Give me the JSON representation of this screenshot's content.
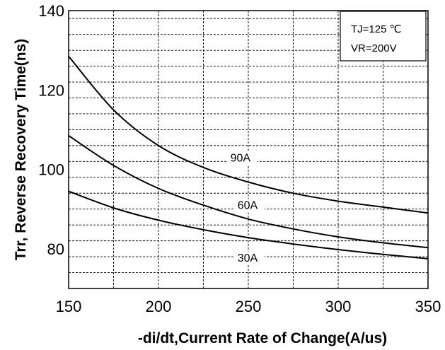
{
  "chart_data": {
    "type": "line",
    "title": "",
    "xlabel": "-di/dt,Current Rate of Change(A/us)",
    "ylabel": "Trr, Reverse Recovery Time(ns)",
    "xlim": [
      150,
      350
    ],
    "ylim": [
      70,
      140
    ],
    "x_ticks": [
      "150",
      "200",
      "250",
      "300",
      "350"
    ],
    "y_ticks": [
      "80",
      "100",
      "120",
      "140"
    ],
    "minor_x_step": 25,
    "minor_y_step": 4,
    "grid": true,
    "legend_position": "top-right",
    "conditions": [
      "TJ=125 ℃",
      "VR=200V"
    ],
    "series": [
      {
        "name": "90A",
        "x": [
          150,
          175,
          200,
          225,
          250,
          275,
          300,
          325,
          350
        ],
        "y": [
          128.5,
          115,
          106,
          100.5,
          96.8,
          94,
          92,
          90.5,
          89
        ]
      },
      {
        "name": "60A",
        "x": [
          150,
          175,
          200,
          225,
          250,
          275,
          300,
          325,
          350
        ],
        "y": [
          108.5,
          101,
          95.2,
          91,
          87.5,
          85,
          83,
          81.5,
          80.3
        ]
      },
      {
        "name": "30A",
        "x": [
          150,
          175,
          200,
          225,
          250,
          275,
          300,
          325,
          350
        ],
        "y": [
          94.5,
          90.3,
          87.2,
          84.8,
          82.8,
          81.2,
          79.8,
          78.6,
          77.5
        ]
      }
    ],
    "curve_labels": [
      {
        "text": "90A",
        "x": 240,
        "y": 102
      },
      {
        "text": "60A",
        "x": 244,
        "y": 90
      },
      {
        "text": "30A",
        "x": 244,
        "y": 76.8
      }
    ]
  }
}
